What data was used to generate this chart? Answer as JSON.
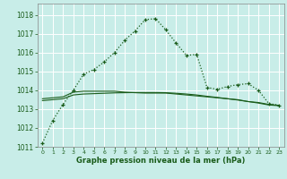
{
  "xlabel": "Graphe pression niveau de la mer (hPa)",
  "bg_color": "#c8ede8",
  "grid_color": "#aadddd",
  "line_color": "#1a5c1a",
  "xlim": [
    -0.5,
    23.5
  ],
  "ylim": [
    1011,
    1018.6
  ],
  "yticks": [
    1011,
    1012,
    1013,
    1014,
    1015,
    1016,
    1017,
    1018
  ],
  "xticks": [
    0,
    1,
    2,
    3,
    4,
    5,
    6,
    7,
    8,
    9,
    10,
    11,
    12,
    13,
    14,
    15,
    16,
    17,
    18,
    19,
    20,
    21,
    22,
    23
  ],
  "series1_x": [
    0,
    1,
    2,
    3,
    4,
    5,
    6,
    7,
    8,
    9,
    10,
    11,
    12,
    13,
    14,
    15,
    16,
    17,
    18,
    19,
    20,
    21,
    22,
    23
  ],
  "series1_y": [
    1011.2,
    1012.4,
    1013.25,
    1014.0,
    1014.85,
    1015.1,
    1015.5,
    1016.0,
    1016.65,
    1017.15,
    1017.75,
    1017.8,
    1017.2,
    1016.5,
    1015.85,
    1015.9,
    1014.15,
    1014.05,
    1014.2,
    1014.3,
    1014.35,
    1014.0,
    1013.3,
    1013.2
  ],
  "series2_x": [
    0,
    1,
    2,
    3,
    4,
    5,
    6,
    7,
    8,
    9,
    10,
    11,
    12,
    13,
    14,
    15,
    16,
    17,
    18,
    19,
    20,
    21,
    22,
    23
  ],
  "series2_y": [
    1013.55,
    1013.6,
    1013.65,
    1013.9,
    1013.95,
    1013.95,
    1013.95,
    1013.95,
    1013.9,
    1013.87,
    1013.85,
    1013.85,
    1013.85,
    1013.8,
    1013.75,
    1013.7,
    1013.65,
    1013.6,
    1013.55,
    1013.5,
    1013.4,
    1013.35,
    1013.25,
    1013.2
  ],
  "series3_x": [
    0,
    1,
    2,
    3,
    4,
    5,
    6,
    7,
    8,
    9,
    10,
    11,
    12,
    13,
    14,
    15,
    16,
    17,
    18,
    19,
    20,
    21,
    22,
    23
  ],
  "series3_y": [
    1013.45,
    1013.5,
    1013.55,
    1013.75,
    1013.8,
    1013.82,
    1013.84,
    1013.86,
    1013.87,
    1013.88,
    1013.88,
    1013.88,
    1013.87,
    1013.84,
    1013.8,
    1013.75,
    1013.68,
    1013.62,
    1013.55,
    1013.48,
    1013.4,
    1013.32,
    1013.22,
    1013.18
  ]
}
